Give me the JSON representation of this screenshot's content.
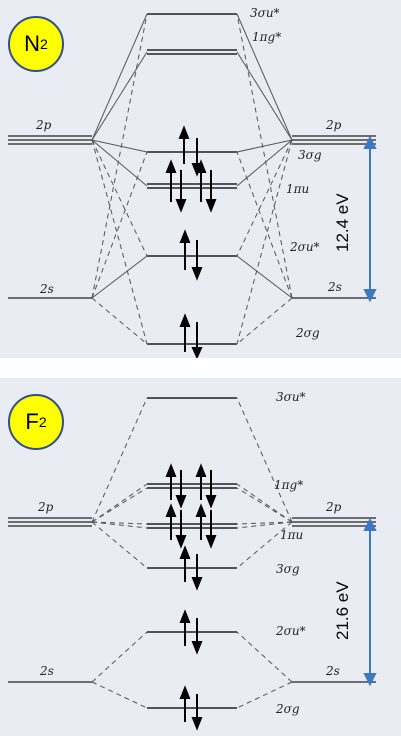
{
  "diagrams": [
    {
      "molecule": "N",
      "subscript": "2",
      "atomic_levels": {
        "p": "2p",
        "s": "2s"
      },
      "mo_labels": {
        "sigma3_star": "3σu*",
        "pi1_star": "1πg*",
        "sigma3": "3σg",
        "pi1": "1πu",
        "sigma2_star": "2σu*",
        "sigma2": "2σg"
      },
      "energy_gap": "12.4 eV"
    },
    {
      "molecule": "F",
      "subscript": "2",
      "atomic_levels": {
        "p": "2p",
        "s": "2s"
      },
      "mo_labels": {
        "sigma3_star": "3σu*",
        "pi1_star": "1πg*",
        "pi1": "1πu",
        "sigma3": "3σg",
        "sigma2_star": "2σu*",
        "sigma2": "2σg"
      },
      "energy_gap": "21.6 eV"
    }
  ],
  "colors": {
    "badge_fill": "#ffff00",
    "badge_border": "#2f4f8f",
    "arrow_blue": "#3b78c4",
    "panel_bg": "#e9edf3"
  }
}
